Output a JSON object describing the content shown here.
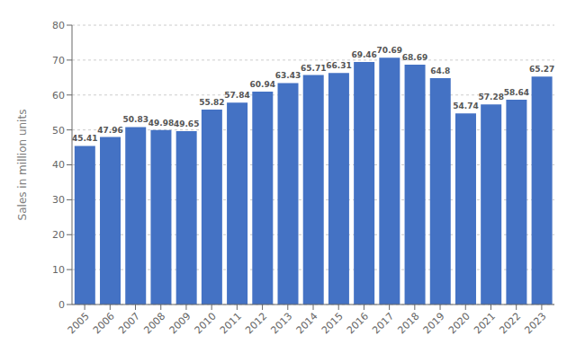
{
  "chart_data": {
    "type": "bar",
    "categories": [
      "2005",
      "2006",
      "2007",
      "2008",
      "2009",
      "2010",
      "2011",
      "2012",
      "2013",
      "2014",
      "2015",
      "2016",
      "2017",
      "2018",
      "2019",
      "2020",
      "2021",
      "2022",
      "2023"
    ],
    "values": [
      45.41,
      47.96,
      50.83,
      49.98,
      49.65,
      55.82,
      57.84,
      60.94,
      63.43,
      65.71,
      66.31,
      69.46,
      70.69,
      68.69,
      64.8,
      54.74,
      57.28,
      58.64,
      65.27
    ],
    "color": "#4472c4",
    "ylabel": "Sales in million units",
    "ylim": [
      0,
      80
    ],
    "yticks": [
      0,
      10,
      20,
      30,
      40,
      50,
      60,
      70,
      80
    ],
    "grid": true,
    "data_labels": true
  }
}
